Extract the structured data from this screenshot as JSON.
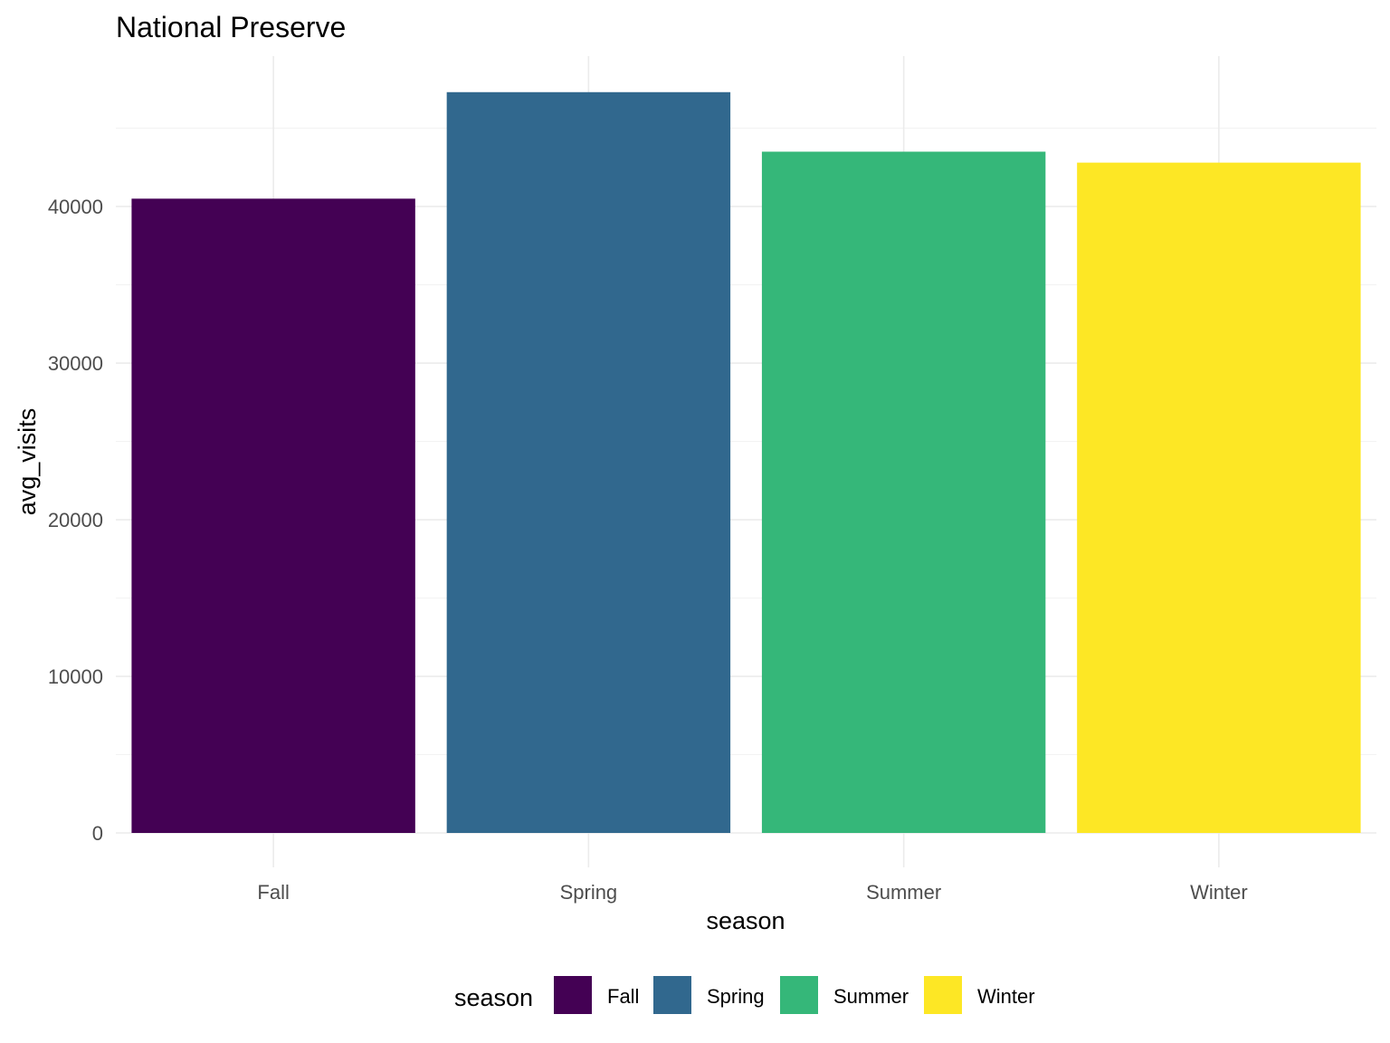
{
  "chart_data": {
    "type": "bar",
    "title": "National Preserve",
    "xlabel": "season",
    "ylabel": "avg_visits",
    "categories": [
      "Fall",
      "Spring",
      "Summer",
      "Winter"
    ],
    "values": [
      40500,
      47300,
      43500,
      42800
    ],
    "colors": [
      "#440154",
      "#31688E",
      "#35B779",
      "#FDE725"
    ],
    "ylim": [
      0,
      49600
    ],
    "yticks": [
      0,
      10000,
      20000,
      30000,
      40000
    ],
    "ytick_labels": [
      "0",
      "10000",
      "20000",
      "30000",
      "40000"
    ],
    "grid": true,
    "legend": {
      "title": "season",
      "position": "bottom",
      "items": [
        "Fall",
        "Spring",
        "Summer",
        "Winter"
      ]
    }
  }
}
